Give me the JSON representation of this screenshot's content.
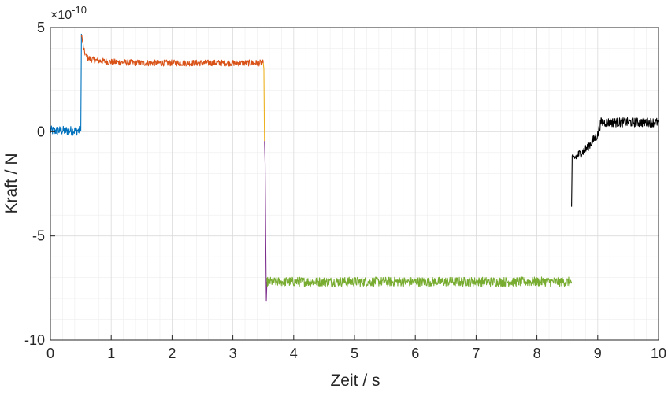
{
  "chart_data": {
    "type": "line",
    "xlabel": "Zeit / s",
    "ylabel": "Kraft / N",
    "exponent_label": "×10",
    "exponent_power": "-10",
    "xlim": [
      0,
      10
    ],
    "ylim": [
      -10,
      5
    ],
    "xticks": [
      0,
      1,
      2,
      3,
      4,
      5,
      6,
      7,
      8,
      9,
      10
    ],
    "yticks": [
      -10,
      -5,
      0,
      5
    ],
    "xtick_labels": [
      "0",
      "1",
      "2",
      "3",
      "4",
      "5",
      "6",
      "7",
      "8",
      "9",
      "10"
    ],
    "ytick_labels": [
      "-10",
      "-5",
      "0",
      "5"
    ],
    "grid": true,
    "minor_grid": true,
    "series": [
      {
        "color": "#0072BD",
        "x": [
          0.0,
          0.5,
          0.5,
          0.51
        ],
        "y": [
          0.05,
          0.05,
          0.05,
          4.7
        ],
        "noise": 0.45
      },
      {
        "color": "#D95319",
        "x": [
          0.51,
          0.55,
          0.6,
          0.7,
          0.8,
          1.0,
          1.5,
          2.0,
          2.5,
          3.0,
          3.5
        ],
        "y": [
          4.7,
          3.9,
          3.55,
          3.45,
          3.4,
          3.35,
          3.3,
          3.3,
          3.3,
          3.3,
          3.3
        ],
        "noise": 0.3
      },
      {
        "color": "#EDB120",
        "x": [
          3.5,
          3.51,
          3.52
        ],
        "y": [
          3.3,
          3.0,
          -0.45
        ],
        "noise": 0.0
      },
      {
        "color": "#7E2F8E",
        "x": [
          3.52,
          3.53,
          3.54,
          3.55,
          3.56
        ],
        "y": [
          -0.45,
          -1.5,
          -5.0,
          -8.1,
          -7.2
        ],
        "noise": 0.0
      },
      {
        "color": "#77AC30",
        "x": [
          3.56,
          4.0,
          5.0,
          6.0,
          7.0,
          8.0,
          8.57
        ],
        "y": [
          -7.2,
          -7.2,
          -7.2,
          -7.2,
          -7.2,
          -7.2,
          -7.2
        ],
        "noise": 0.45
      },
      {
        "color": "#000000",
        "x": [
          8.57,
          8.58,
          8.6,
          8.8,
          9.0,
          9.05,
          9.2,
          9.5,
          10.0
        ],
        "y": [
          -3.6,
          -1.3,
          -1.3,
          -0.85,
          -0.15,
          0.45,
          0.45,
          0.45,
          0.45
        ],
        "noise": 0.45
      }
    ]
  }
}
